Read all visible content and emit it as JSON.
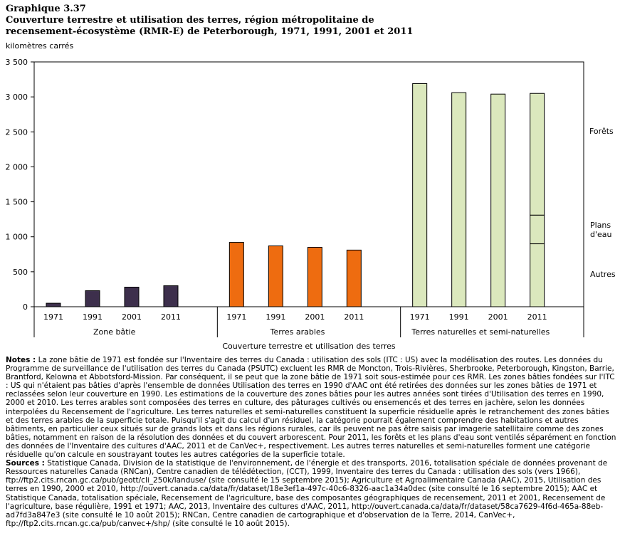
{
  "header": {
    "number": "Graphique 3.37",
    "title_line1": "Couverture terrestre et utilisation des terres, région métropolitaine de",
    "title_line2": "recensement-écosystème (RMR-E) de Peterborough, 1971, 1991, 2001 et 2011"
  },
  "colors": {
    "built": "#3d2f4c",
    "arable": "#ee6c10",
    "natural": "#dbe8bd",
    "edge": "#000000"
  },
  "chart_data": {
    "type": "bar",
    "ylabel": "kilomètres carrés",
    "xlabel": "Couverture terrestre et utilisation des terres",
    "ylim": [
      0,
      3500
    ],
    "yticks": [
      0,
      500,
      1000,
      1500,
      2000,
      2500,
      3000,
      3500
    ],
    "ytick_labels": [
      "0",
      "500",
      "1 000",
      "1 500",
      "2 000",
      "2 500",
      "3 000",
      "3 500"
    ],
    "grid": false,
    "groups": [
      {
        "name": "Zone bâtie",
        "categories": [
          "1971",
          "1991",
          "2001",
          "2011"
        ],
        "values": [
          50,
          230,
          280,
          300
        ],
        "color_key": "built"
      },
      {
        "name": "Terres arables",
        "categories": [
          "1971",
          "1991",
          "2001",
          "2011"
        ],
        "values": [
          920,
          870,
          850,
          810
        ],
        "color_key": "arable"
      },
      {
        "name": "Terres naturelles et semi-naturelles",
        "categories": [
          "1971",
          "1991",
          "2001",
          "2011"
        ],
        "values": [
          3190,
          3060,
          3040,
          3050
        ],
        "color_key": "natural"
      }
    ],
    "stacked_2011_natural": [
      {
        "name": "Autres",
        "value": 900
      },
      {
        "name": "Plans d'eau",
        "value": 410
      },
      {
        "name": "Forêts",
        "value": 1740
      }
    ],
    "annotations": [
      "Forêts",
      "Plans d'eau",
      "Autres"
    ]
  },
  "notes": {
    "notes_label": "Notes :",
    "notes_text": "La zone bâtie de 1971 est fondée sur l'Inventaire des terres du Canada : utilisation des sols (ITC : US) avec la modélisation des routes. Les données du Programme de surveillance de l'utilisation des terres du Canada (PSUTC) excluent les RMR de Moncton, Trois-Rivières, Sherbrooke, Peterborough, Kingston, Barrie, Brantford, Kelowna et Abbotsford-Mission. Par conséquent, il se peut que la zone bâtie de 1971 soit sous-estimée pour ces RMR. Les zones bâties fondées sur l'ITC : US qui n'étaient pas bâties d'après l'ensemble de données Utilisation des terres en 1990 d'AAC ont été retirées des données sur les zones bâties de 1971 et reclassées selon leur couverture en 1990. Les estimations de la couverture des zones bâties pour les autres années sont tirées d'Utilisation des terres en 1990, 2000 et 2010. Les terres arables sont composées des terres en culture, des pâturages cultivés ou ensemencés et des terres en jachère, selon les données interpolées du Recensement de l'agriculture. Les terres naturelles et semi-naturelles constituent la superficie résiduelle après le retranchement des zones bâties et des terres arables de la superficie totale. Puisqu'il s'agit du calcul d'un résiduel, la catégorie pourrait également comprendre des habitations et autres bâtiments, en particulier ceux situés sur de grands lots et dans les régions rurales, car ils peuvent ne pas être saisis par imagerie satellitaire comme des zones bâties, notamment en raison de la résolution des données et du couvert arborescent. Pour 2011, les forêts et les plans d'eau sont ventilés séparément en fonction des données de l'Inventaire des cultures d'AAC, 2011 et de CanVec+, respectivement. Les autres terres naturelles et semi-naturelles forment une catégorie résiduelle qu'on calcule en soustrayant toutes les autres catégories de la superficie totale.",
    "sources_label": "Sources :",
    "sources_text": "Statistique Canada, Division de la statistique de l'environnement, de l'énergie et des transports, 2016, totalisation spéciale de données provenant de Ressources naturelles Canada (RNCan), Centre canadien de télédétection, (CCT), 1999, Inventaire des terres du Canada : utilisation des sols (vers 1966), ftp://ftp2.cits.rncan.gc.ca/pub/geott/cli_250k/landuse/ (site consulté le 15 septembre 2015); Agriculture et Agroalimentaire Canada (AAC), 2015, Utilisation des terres en 1990, 2000 et 2010, http://ouvert.canada.ca/data/fr/dataset/18e3ef1a-497c-40c6-8326-aac1a34a0dec (site consulté le 16 septembre 2015); AAC et Statistique Canada, totalisation spéciale, Recensement de l'agriculture, base des composantes géographiques de recensement, 2011 et 2001, Recensement de l'agriculture, base régulière, 1991 et 1971; AAC, 2013, Inventaire des cultures d'AAC, 2011, http://ouvert.canada.ca/data/fr/dataset/58ca7629-4f6d-465a-88eb-ad7fd3a847e3 (site consulté le 10 août 2015); RNCan, Centre canadien de cartographique et d'observation de la Terre, 2014, CanVec+, ftp://ftp2.cits.rncan.gc.ca/pub/canvec+/shp/ (site consulté le 10 août 2015)."
  }
}
